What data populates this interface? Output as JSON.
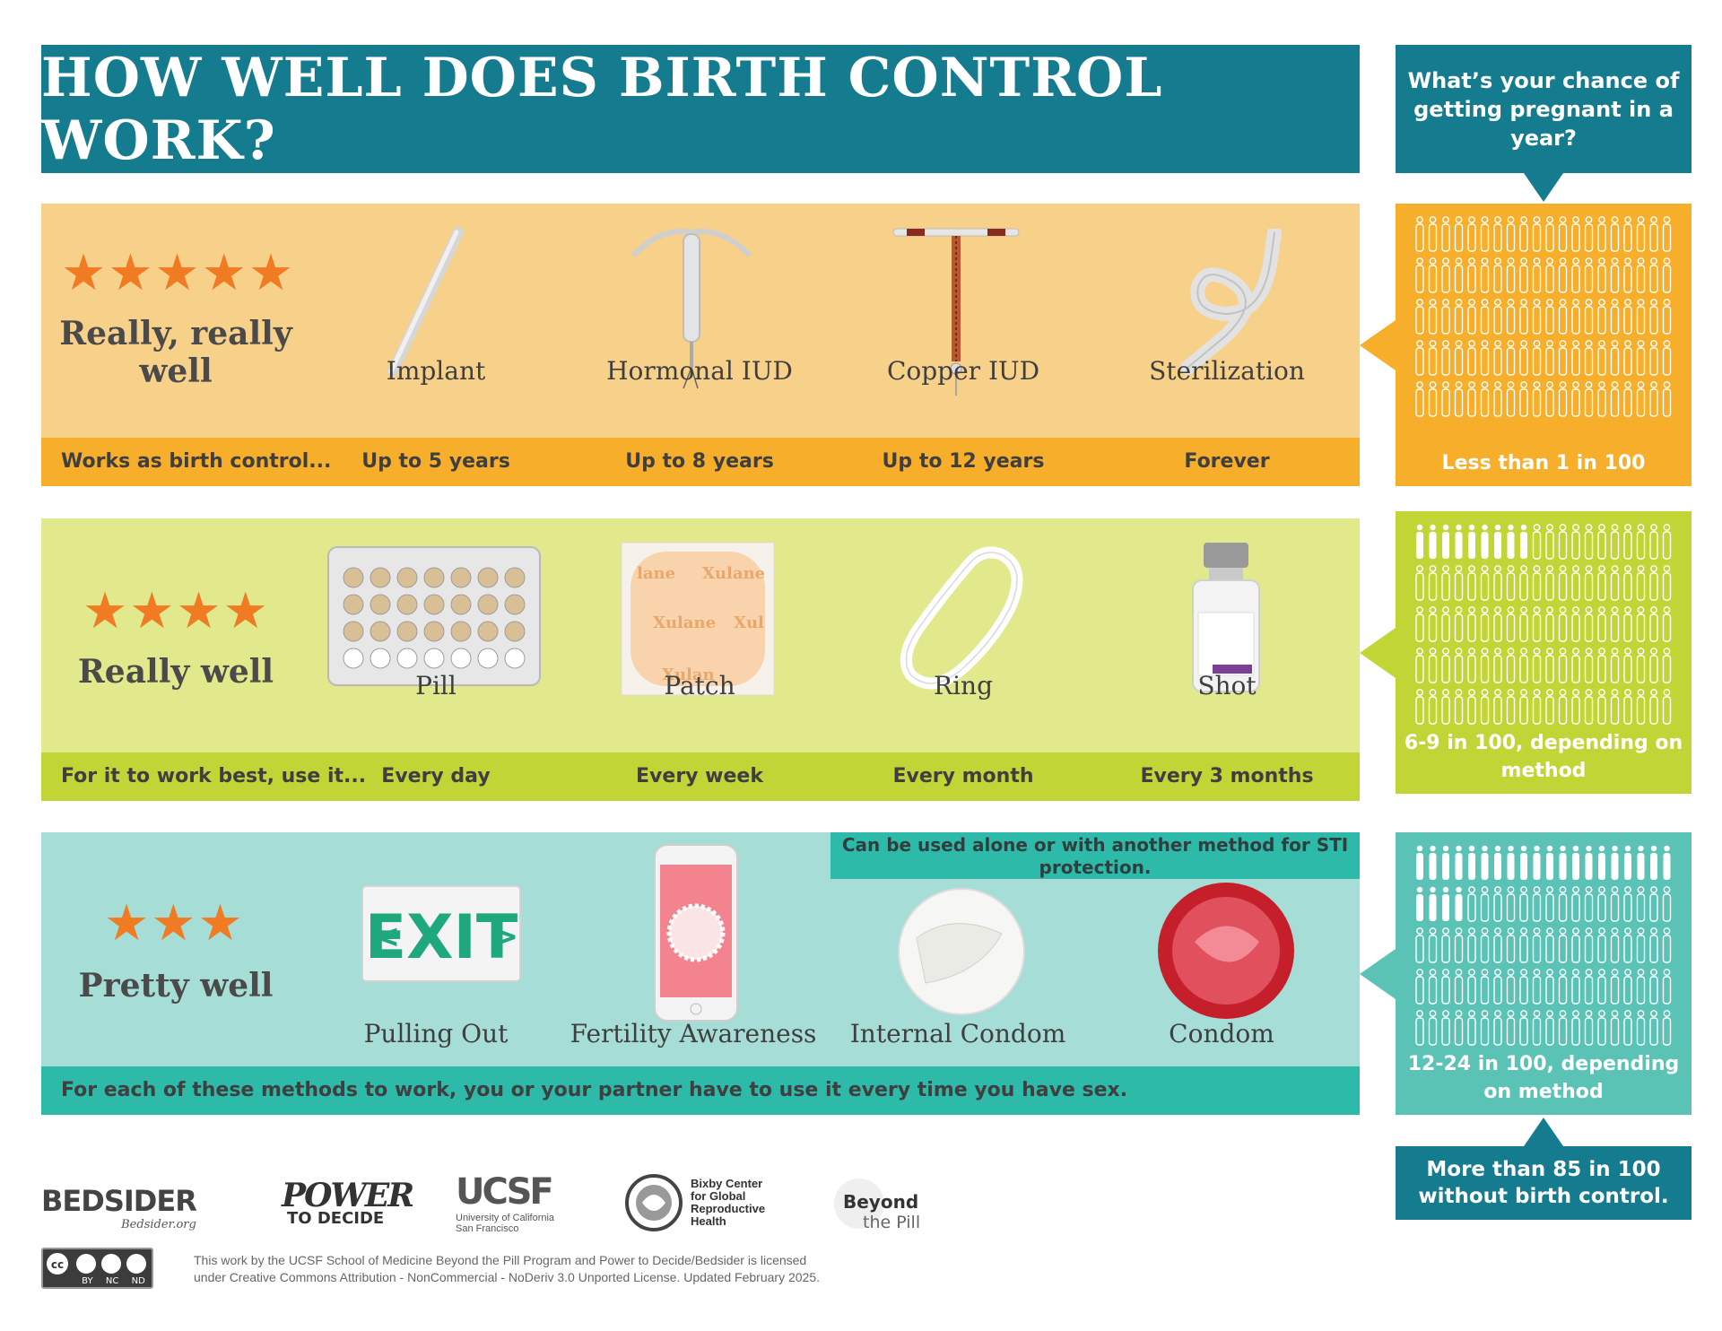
{
  "title": "HOW WELL DOES BIRTH CONTROL WORK?",
  "question": "What’s your chance of getting pregnant in a year?",
  "tiers": [
    {
      "stars": 5,
      "rating": "Really, really well",
      "strip_label": "Works as birth control...",
      "methods": [
        {
          "name": "Implant",
          "detail": "Up to 5 years",
          "icon": "implant-rod-icon"
        },
        {
          "name": "Hormonal IUD",
          "detail": "Up to 8 years",
          "icon": "hormonal-iud-icon"
        },
        {
          "name": "Copper IUD",
          "detail": "Up to 12 years",
          "icon": "copper-iud-icon"
        },
        {
          "name": "Sterilization",
          "detail": "Forever",
          "icon": "knotted-tube-icon"
        }
      ],
      "chance": "Less than 1 in 100",
      "people_total": 100,
      "people_pregnant": 0
    },
    {
      "stars": 4,
      "rating": "Really well",
      "strip_label": "For it to work best, use it...",
      "methods": [
        {
          "name": "Pill",
          "detail": "Every day",
          "icon": "pill-pack-icon"
        },
        {
          "name": "Patch",
          "detail": "Every week",
          "icon": "patch-icon"
        },
        {
          "name": "Ring",
          "detail": "Every month",
          "icon": "ring-icon"
        },
        {
          "name": "Shot",
          "detail": "Every 3 months",
          "icon": "vial-icon"
        }
      ],
      "chance": "6-9 in 100, depending on method",
      "people_total": 100,
      "people_pregnant": 9
    },
    {
      "stars": 3,
      "rating": "Pretty well",
      "strip_label": "For each of these methods to work, you or your partner have to use it every time you have sex.",
      "note": "Can be used alone or with another method for STI protection.",
      "methods": [
        {
          "name": "Pulling Out",
          "icon": "exit-sign-icon"
        },
        {
          "name": "Fertility Awareness",
          "icon": "phone-app-icon"
        },
        {
          "name": "Internal Condom",
          "icon": "internal-condom-icon"
        },
        {
          "name": "Condom",
          "icon": "condom-icon"
        }
      ],
      "chance": "12-24 in 100, depending on method",
      "people_total": 100,
      "people_pregnant": 24
    }
  ],
  "without": "More than 85 in 100 without birth control.",
  "logos": {
    "bedsider": "BEDSIDER",
    "bedsider_url": "Bedsider.org",
    "power_top": "POWER",
    "power_bottom": "TO DECIDE",
    "ucsf": "UCSF",
    "ucsf_sub1": "University of California",
    "ucsf_sub2": "San Francisco",
    "bixby1": "Bixby Center",
    "bixby2": "for Global",
    "bixby3": "Reproductive",
    "bixby4": "Health",
    "beyond1": "Beyond",
    "beyond2": "the Pill"
  },
  "cc_labels": [
    "BY",
    "NC",
    "ND"
  ],
  "license_line1": "This work by the UCSF School of Medicine Beyond the Pill Program and Power to Decide/Bedsider is licensed",
  "license_line2": "under Creative Commons Attribution - NonCommercial - NoDeriv 3.0 Unported License. Updated February 2025.",
  "colors": {
    "teal_dark": "#147c8e",
    "orange_bg": "#f7d08a",
    "orange_strip": "#f7ae2b",
    "green_bg": "#e2e98c",
    "green_strip": "#c2d537",
    "teal_bg": "#a6ddd6",
    "teal_strip": "#2ebaa9",
    "star": "#f07b22"
  }
}
